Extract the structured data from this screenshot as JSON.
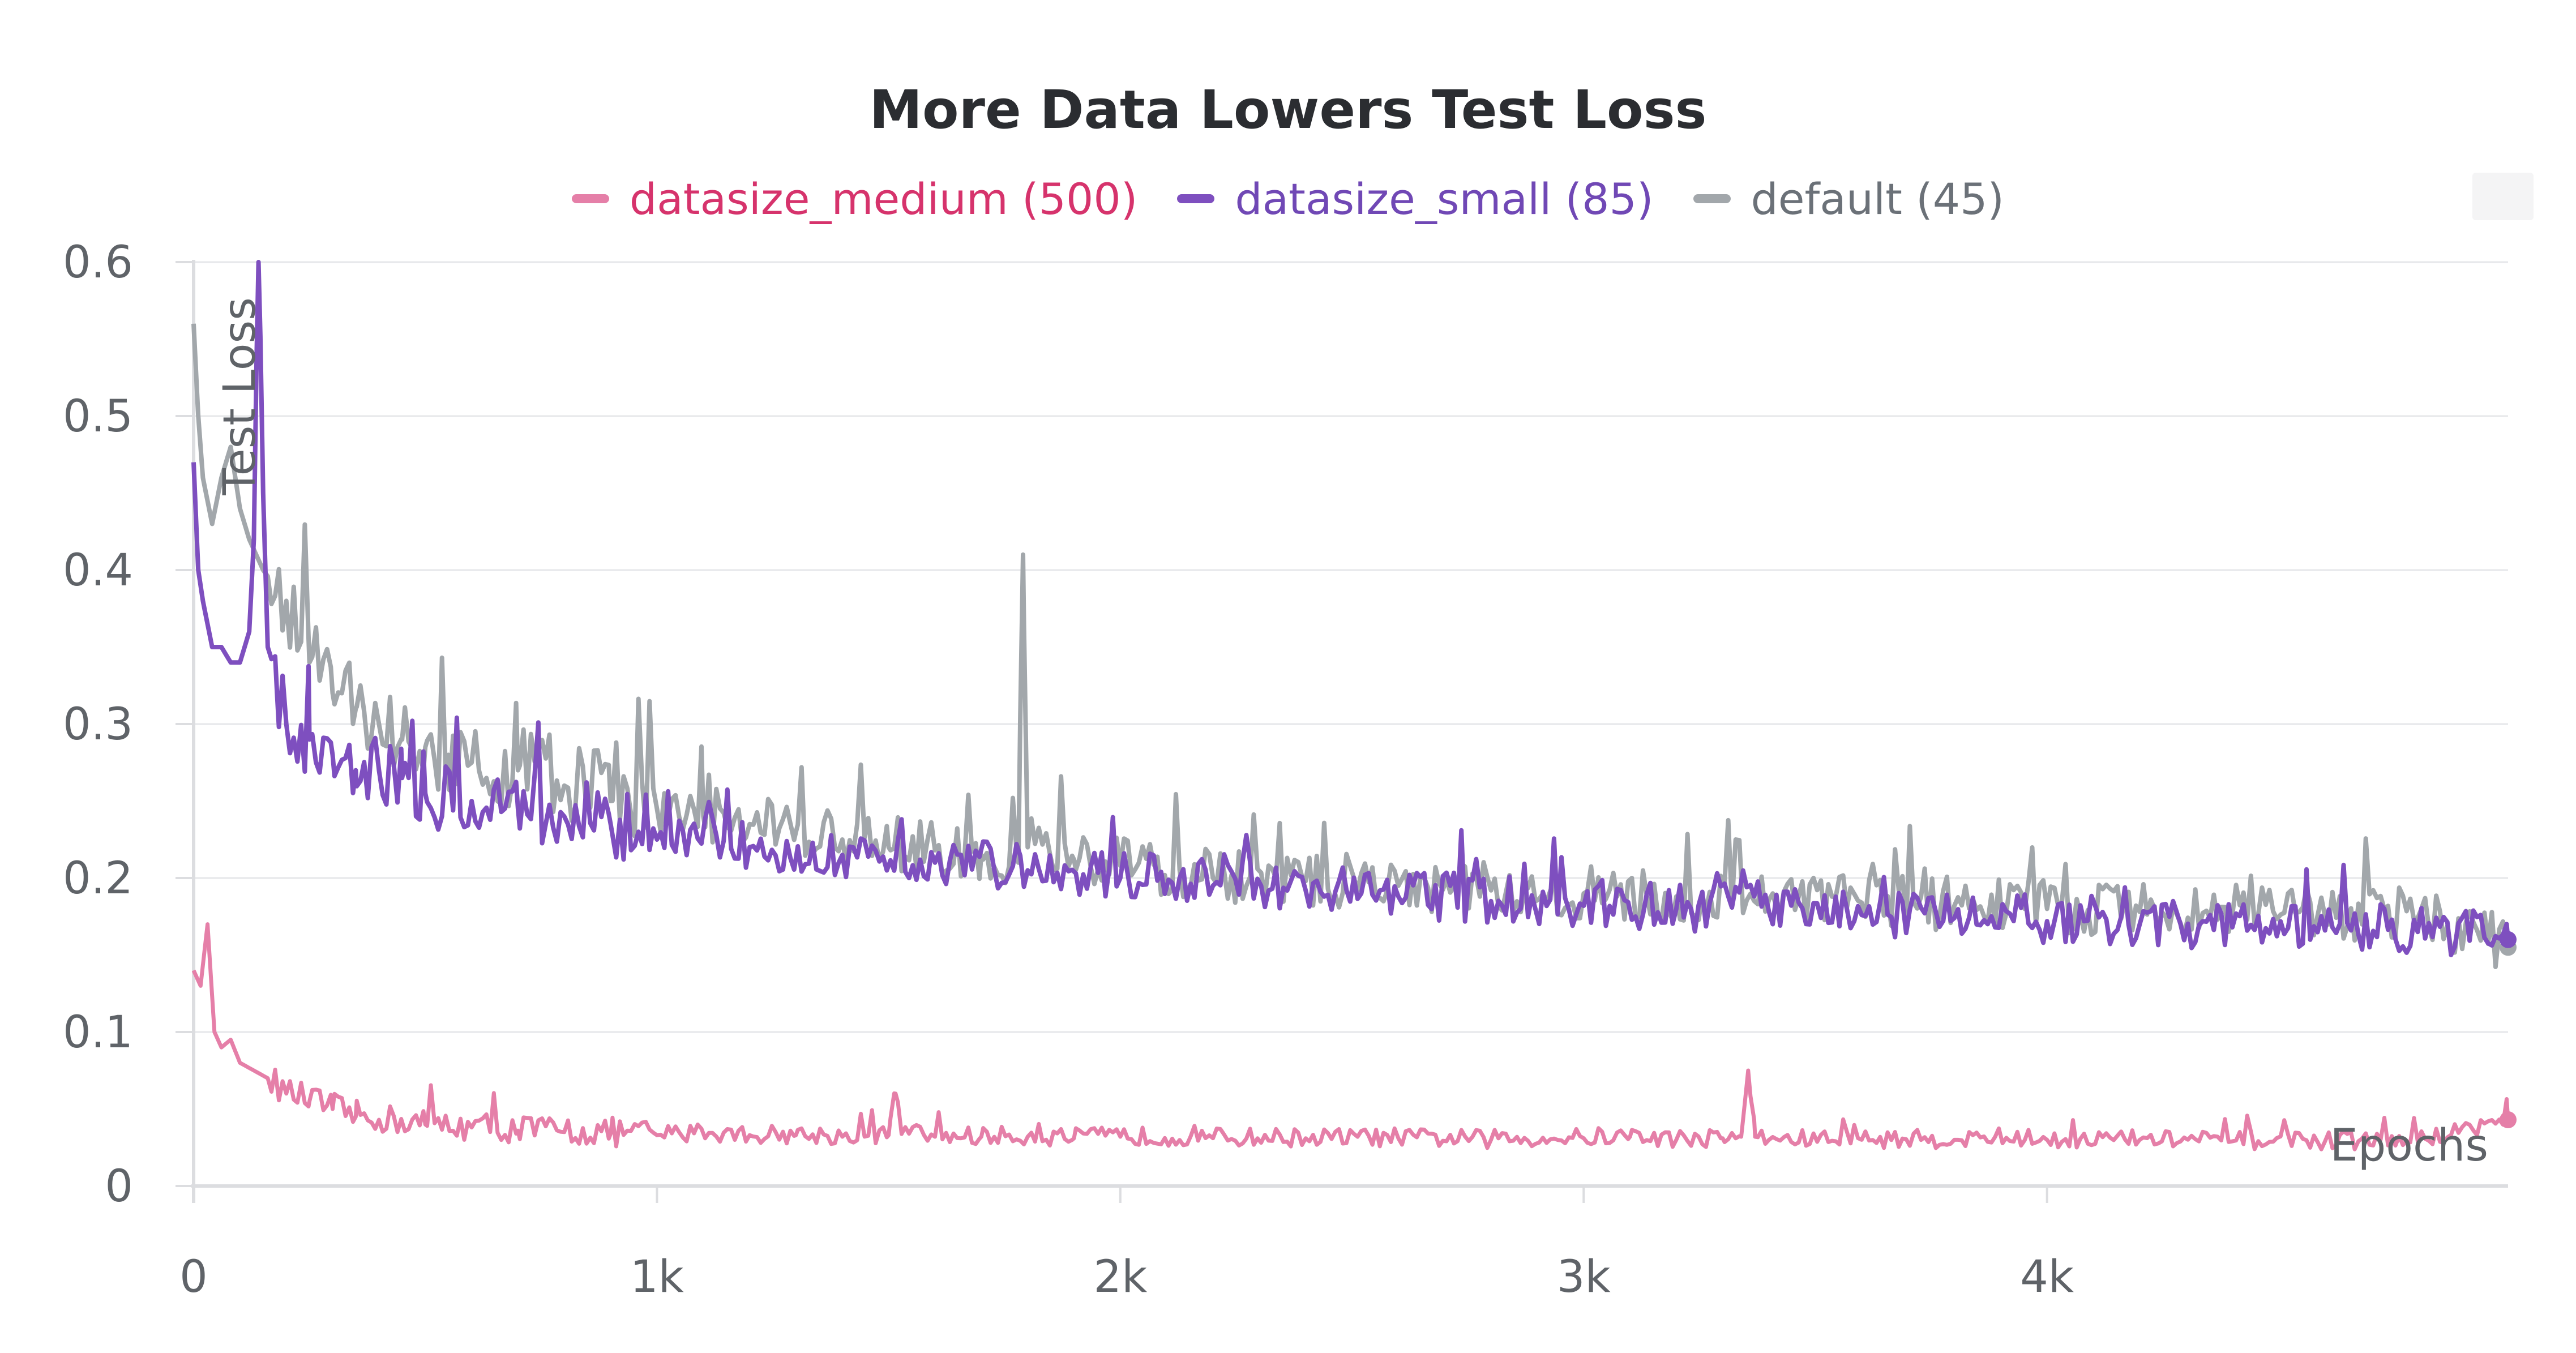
{
  "chart_data": {
    "type": "line",
    "title": "More Data Lowers Test Loss",
    "xlabel": "Epochs",
    "ylabel": "Test Loss",
    "xlim": [
      0,
      5000
    ],
    "ylim": [
      0,
      0.6
    ],
    "x_ticks": [
      0,
      1000,
      2000,
      3000,
      4000
    ],
    "x_tick_labels": [
      "0",
      "1k",
      "2k",
      "3k",
      "4k"
    ],
    "y_ticks": [
      0,
      0.1,
      0.2,
      0.3,
      0.4,
      0.5,
      0.6
    ],
    "y_tick_labels": [
      "0",
      "0.1",
      "0.2",
      "0.3",
      "0.4",
      "0.5",
      "0.6"
    ],
    "grid": true,
    "legend_position": "top",
    "series": [
      {
        "name": "datasize_medium (500)",
        "color": "#e57fa8",
        "legend_text_color": "#d6336c",
        "x": [
          0,
          15,
          30,
          45,
          60,
          80,
          100,
          130,
          160,
          200,
          250,
          300,
          350,
          400,
          500,
          600,
          700,
          800,
          900,
          1000,
          1100,
          1200,
          1300,
          1400,
          1500,
          1515,
          1530,
          1600,
          1700,
          1800,
          1900,
          2000,
          2200,
          2400,
          2600,
          2800,
          3000,
          3100,
          3200,
          3300,
          3340,
          3355,
          3370,
          3400,
          3600,
          3800,
          4000,
          4200,
          4400,
          4600,
          4800,
          4995
        ],
        "y": [
          0.14,
          0.13,
          0.17,
          0.1,
          0.09,
          0.095,
          0.08,
          0.075,
          0.07,
          0.06,
          0.055,
          0.05,
          0.045,
          0.043,
          0.04,
          0.038,
          0.036,
          0.035,
          0.034,
          0.033,
          0.034,
          0.033,
          0.033,
          0.032,
          0.033,
          0.06,
          0.035,
          0.032,
          0.032,
          0.032,
          0.031,
          0.032,
          0.031,
          0.031,
          0.031,
          0.03,
          0.031,
          0.032,
          0.03,
          0.031,
          0.032,
          0.075,
          0.032,
          0.03,
          0.03,
          0.03,
          0.03,
          0.03,
          0.029,
          0.029,
          0.029,
          0.043
        ]
      },
      {
        "name": "datasize_small (85)",
        "color": "#7e4fbf",
        "legend_text_color": "#7048b5",
        "x": [
          0,
          10,
          20,
          40,
          60,
          80,
          100,
          120,
          130,
          140,
          150,
          160,
          180,
          200,
          250,
          300,
          350,
          400,
          450,
          500,
          600,
          700,
          800,
          900,
          1000,
          1200,
          1400,
          1600,
          1800,
          2000,
          2200,
          2400,
          2600,
          2800,
          3000,
          3200,
          3400,
          3600,
          3800,
          4000,
          4200,
          4400,
          4600,
          4800,
          4995
        ],
        "y": [
          0.47,
          0.4,
          0.38,
          0.35,
          0.35,
          0.34,
          0.34,
          0.36,
          0.42,
          0.62,
          0.45,
          0.35,
          0.32,
          0.3,
          0.29,
          0.28,
          0.27,
          0.27,
          0.265,
          0.255,
          0.25,
          0.245,
          0.24,
          0.235,
          0.225,
          0.22,
          0.215,
          0.21,
          0.205,
          0.2,
          0.195,
          0.192,
          0.188,
          0.185,
          0.182,
          0.18,
          0.178,
          0.176,
          0.174,
          0.172,
          0.17,
          0.168,
          0.166,
          0.165,
          0.16
        ]
      },
      {
        "name": "default (45)",
        "color": "#a2a7ab",
        "legend_text_color": "#6b7178",
        "x": [
          0,
          10,
          20,
          40,
          60,
          80,
          100,
          120,
          150,
          200,
          250,
          300,
          350,
          400,
          450,
          500,
          550,
          600,
          700,
          800,
          900,
          1000,
          1100,
          1200,
          1300,
          1400,
          1500,
          1600,
          1700,
          1780,
          1790,
          1800,
          1900,
          2000,
          2200,
          2400,
          2600,
          2800,
          3000,
          3200,
          3400,
          3600,
          3800,
          4000,
          4200,
          4400,
          4600,
          4800,
          4995
        ],
        "y": [
          0.56,
          0.5,
          0.46,
          0.43,
          0.46,
          0.48,
          0.44,
          0.42,
          0.4,
          0.38,
          0.34,
          0.32,
          0.31,
          0.3,
          0.29,
          0.285,
          0.28,
          0.275,
          0.27,
          0.26,
          0.25,
          0.245,
          0.24,
          0.235,
          0.23,
          0.225,
          0.22,
          0.218,
          0.215,
          0.21,
          0.41,
          0.22,
          0.212,
          0.208,
          0.2,
          0.198,
          0.195,
          0.192,
          0.19,
          0.188,
          0.186,
          0.184,
          0.182,
          0.18,
          0.178,
          0.176,
          0.175,
          0.174,
          0.155
        ]
      }
    ]
  }
}
